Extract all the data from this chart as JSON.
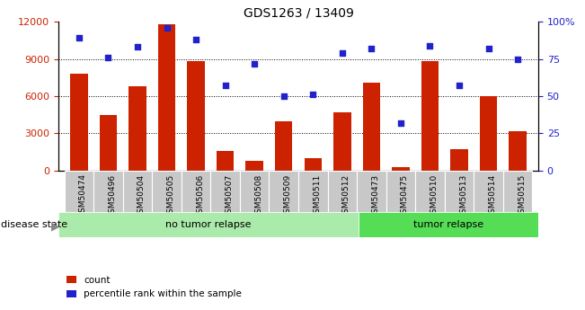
{
  "title": "GDS1263 / 13409",
  "samples": [
    "GSM50474",
    "GSM50496",
    "GSM50504",
    "GSM50505",
    "GSM50506",
    "GSM50507",
    "GSM50508",
    "GSM50509",
    "GSM50511",
    "GSM50512",
    "GSM50473",
    "GSM50475",
    "GSM50510",
    "GSM50513",
    "GSM50514",
    "GSM50515"
  ],
  "counts": [
    7800,
    4500,
    6800,
    11800,
    8800,
    1600,
    800,
    4000,
    1000,
    4700,
    7100,
    300,
    8800,
    1700,
    6000,
    3200
  ],
  "percentiles": [
    89,
    76,
    83,
    96,
    88,
    57,
    72,
    50,
    51,
    79,
    82,
    32,
    84,
    57,
    82,
    75
  ],
  "group_labels": [
    "no tumor relapse",
    "tumor relapse"
  ],
  "group_sizes": [
    10,
    6
  ],
  "group_colors": [
    "#aaeaaa",
    "#55dd55"
  ],
  "bar_color": "#cc2200",
  "dot_color": "#2222cc",
  "cell_color": "#c8c8c8",
  "ylim_left": [
    0,
    12000
  ],
  "ylim_right": [
    0,
    100
  ],
  "yticks_left": [
    0,
    3000,
    6000,
    9000,
    12000
  ],
  "yticks_right": [
    0,
    25,
    50,
    75,
    100
  ],
  "ytick_right_labels": [
    "0",
    "25",
    "50",
    "75",
    "100%"
  ],
  "legend_count_label": "count",
  "legend_pct_label": "percentile rank within the sample",
  "disease_state_label": "disease state"
}
